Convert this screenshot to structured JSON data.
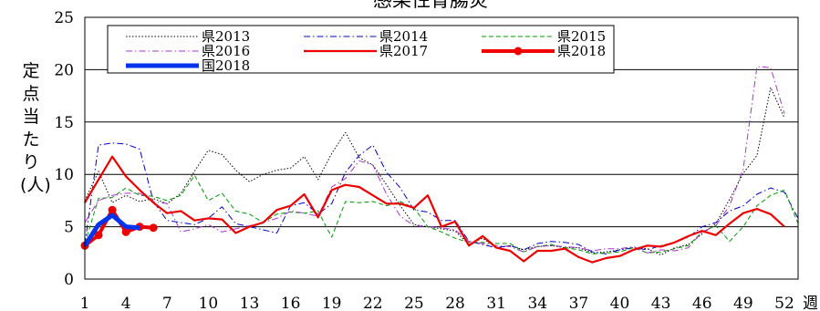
{
  "chart_data": {
    "type": "line",
    "title": "感染性胃腸炎",
    "ylabel": "定点当たり(人)",
    "xlabel": "週",
    "ylim": [
      0,
      25
    ],
    "yticks": [
      0,
      5,
      10,
      15,
      20,
      25
    ],
    "xlim": [
      1,
      53
    ],
    "xticks": [
      1,
      4,
      7,
      10,
      13,
      16,
      19,
      22,
      25,
      28,
      31,
      34,
      37,
      40,
      43,
      46,
      49,
      52
    ],
    "grid": "horizontal",
    "legend_position": "top-left",
    "series": [
      {
        "name": "県2013",
        "color": "#000000",
        "style": "dotted",
        "x": [
          1,
          2,
          3,
          4,
          5,
          6,
          7,
          8,
          9,
          10,
          11,
          12,
          13,
          14,
          15,
          16,
          17,
          18,
          19,
          20,
          21,
          22,
          23,
          24,
          25,
          26,
          27,
          28,
          29,
          30,
          31,
          32,
          33,
          34,
          35,
          36,
          37,
          38,
          39,
          40,
          41,
          42,
          43,
          44,
          45,
          46,
          47,
          48,
          49,
          50,
          51,
          52
        ],
        "values": [
          7.5,
          10.3,
          7.3,
          8.0,
          7.4,
          7.7,
          7.2,
          8.2,
          10.3,
          12.3,
          11.9,
          10.4,
          9.3,
          10.0,
          10.4,
          10.6,
          11.7,
          9.5,
          12.0,
          14.0,
          11.6,
          10.9,
          9.0,
          7.0,
          5.2,
          5.0,
          4.8,
          4.6,
          3.3,
          3.9,
          3.0,
          3.2,
          2.8,
          3.1,
          3.2,
          3.0,
          3.0,
          2.5,
          2.6,
          2.8,
          3.0,
          2.9,
          2.3,
          3.0,
          3.3,
          4.3,
          5.3,
          7.6,
          10.1,
          11.8,
          18.3,
          15.4
        ]
      },
      {
        "name": "県2014",
        "color": "#0000cc",
        "style": "dashdot",
        "x": [
          1,
          2,
          3,
          4,
          5,
          6,
          7,
          8,
          9,
          10,
          11,
          12,
          13,
          14,
          15,
          16,
          17,
          18,
          19,
          20,
          21,
          22,
          23,
          24,
          25,
          26,
          27,
          28,
          29,
          30,
          31,
          32,
          33,
          34,
          35,
          36,
          37,
          38,
          39,
          40,
          41,
          42,
          43,
          44,
          45,
          46,
          47,
          48,
          49,
          50,
          51,
          52,
          53
        ],
        "values": [
          3.3,
          12.8,
          13.0,
          12.9,
          12.4,
          7.4,
          5.6,
          5.4,
          5.2,
          5.8,
          6.9,
          5.3,
          5.0,
          4.7,
          4.4,
          7.0,
          7.3,
          6.2,
          7.2,
          10.2,
          11.8,
          12.8,
          10.2,
          8.7,
          6.6,
          6.4,
          5.6,
          5.6,
          3.6,
          3.3,
          3.0,
          3.2,
          2.8,
          3.4,
          3.6,
          3.5,
          3.3,
          2.6,
          2.4,
          2.8,
          3.0,
          2.8,
          3.2,
          3.5,
          4.0,
          5.0,
          5.4,
          6.5,
          7.0,
          8.1,
          8.7,
          8.3,
          5.8
        ]
      },
      {
        "name": "県2015",
        "color": "#009900",
        "style": "dashed",
        "x": [
          1,
          2,
          3,
          4,
          5,
          6,
          7,
          8,
          9,
          10,
          11,
          12,
          13,
          14,
          15,
          16,
          17,
          18,
          19,
          20,
          21,
          22,
          23,
          24,
          25,
          26,
          27,
          28,
          29,
          30,
          31,
          32,
          33,
          34,
          35,
          36,
          37,
          38,
          39,
          40,
          41,
          42,
          43,
          44,
          45,
          46,
          47,
          48,
          49,
          50,
          51,
          52,
          53
        ],
        "values": [
          3.4,
          7.7,
          7.8,
          8.7,
          8.0,
          7.9,
          7.5,
          8.0,
          9.9,
          7.5,
          8.2,
          6.5,
          6.2,
          5.4,
          6.2,
          6.4,
          6.3,
          6.5,
          4.0,
          7.4,
          7.3,
          7.4,
          7.0,
          7.4,
          6.8,
          5.0,
          4.5,
          3.9,
          3.5,
          3.5,
          3.4,
          3.4,
          2.6,
          3.1,
          3.3,
          3.0,
          2.8,
          2.4,
          2.5,
          2.6,
          3.0,
          2.5,
          2.6,
          2.9,
          3.2,
          4.5,
          5.1,
          3.6,
          5.0,
          7.0,
          8.0,
          8.5,
          5.3
        ]
      },
      {
        "name": "県2016",
        "color": "#aa33cc",
        "style": "dashdot",
        "x": [
          1,
          2,
          3,
          4,
          5,
          6,
          7,
          8,
          9,
          10,
          11,
          12,
          13,
          14,
          15,
          16,
          17,
          18,
          19,
          20,
          21,
          22,
          23,
          24,
          25,
          26,
          27,
          28,
          29,
          30,
          31,
          32,
          33,
          34,
          35,
          36,
          37,
          38,
          39,
          40,
          41,
          42,
          43,
          44,
          45,
          46,
          47,
          48,
          49,
          50,
          51,
          52
        ],
        "values": [
          5.4,
          7.5,
          8.0,
          8.2,
          8.2,
          7.4,
          7.2,
          4.5,
          4.8,
          5.2,
          4.5,
          4.8,
          5.1,
          5.4,
          5.8,
          6.5,
          6.3,
          6.0,
          8.8,
          9.6,
          11.3,
          10.9,
          8.1,
          6.0,
          5.1,
          5.0,
          4.9,
          4.7,
          3.6,
          3.4,
          3.2,
          3.1,
          2.6,
          3.1,
          3.2,
          3.1,
          3.0,
          2.7,
          2.9,
          2.9,
          3.1,
          2.5,
          2.8,
          2.7,
          3.0,
          4.5,
          5.1,
          7.0,
          10.5,
          20.3,
          20.2,
          15.8
        ]
      },
      {
        "name": "県2017",
        "color": "#ee0000",
        "style": "solid",
        "x": [
          1,
          2,
          3,
          4,
          5,
          6,
          7,
          8,
          9,
          10,
          11,
          12,
          13,
          14,
          15,
          16,
          17,
          18,
          19,
          20,
          21,
          22,
          23,
          24,
          25,
          26,
          27,
          28,
          29,
          30,
          31,
          32,
          33,
          34,
          35,
          36,
          37,
          38,
          39,
          40,
          41,
          42,
          43,
          44,
          45,
          46,
          47,
          48,
          49,
          50,
          51,
          52
        ],
        "values": [
          7.3,
          9.5,
          11.7,
          9.8,
          8.5,
          7.3,
          6.3,
          6.5,
          5.6,
          5.8,
          5.7,
          4.4,
          5.0,
          5.4,
          6.6,
          7.0,
          8.1,
          5.9,
          8.5,
          9.0,
          8.8,
          8.0,
          7.2,
          7.2,
          6.8,
          8.0,
          5.0,
          5.5,
          3.2,
          4.1,
          3.0,
          2.7,
          1.7,
          2.7,
          2.7,
          2.9,
          2.1,
          1.6,
          2.0,
          2.2,
          2.8,
          3.2,
          3.1,
          3.5,
          4.1,
          4.6,
          4.2,
          5.3,
          6.3,
          6.7,
          6.2,
          5.0
        ]
      },
      {
        "name": "県2018",
        "color": "#ee0000",
        "style": "bold-marker",
        "x": [
          1,
          2,
          3,
          4,
          5,
          6
        ],
        "values": [
          3.2,
          4.2,
          6.6,
          4.5,
          5.0,
          4.9
        ]
      },
      {
        "name": "国2018",
        "color": "#0033ee",
        "style": "bold",
        "x": [
          1,
          2,
          3,
          4,
          5
        ],
        "values": [
          3.2,
          5.2,
          6.1,
          5.0,
          4.9
        ]
      }
    ]
  }
}
